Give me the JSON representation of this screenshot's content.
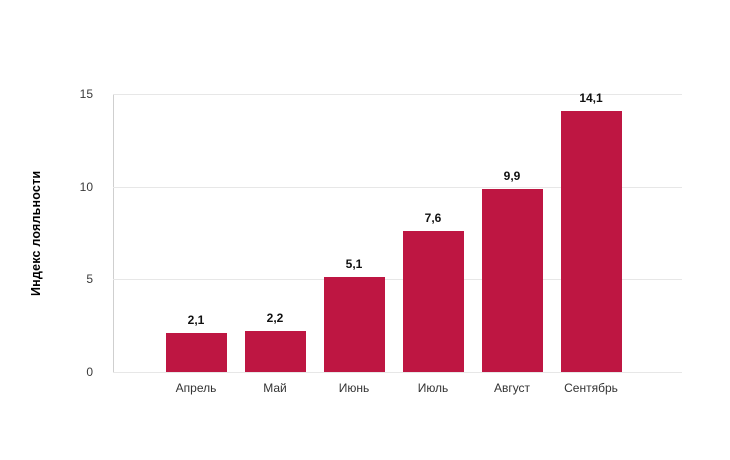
{
  "chart_data": {
    "type": "bar",
    "title": "",
    "xlabel": "",
    "ylabel": "Индекс лояльности",
    "categories": [
      "Апрель",
      "Май",
      "Июнь",
      "Июль",
      "Август",
      "Сентябрь"
    ],
    "values": [
      2.1,
      2.2,
      5.1,
      7.6,
      9.9,
      14.1
    ],
    "value_labels": [
      "2,1",
      "2,2",
      "5,1",
      "7,6",
      "9,9",
      "14,1"
    ],
    "ylim": [
      0,
      15
    ],
    "yticks": [
      0,
      5,
      10,
      15
    ],
    "ytick_labels": [
      "0",
      "5",
      "10",
      "15"
    ],
    "grid": true,
    "legend": false,
    "decimal_separator": ",",
    "colors": {
      "bar": "#BE1642",
      "gridline": "#E7E7E7",
      "axis_line": "#CFCFCF",
      "background": "#FFFFFF",
      "tick_text": "#3A3A3A",
      "value_text": "#111111",
      "title_text": "#000000"
    }
  }
}
